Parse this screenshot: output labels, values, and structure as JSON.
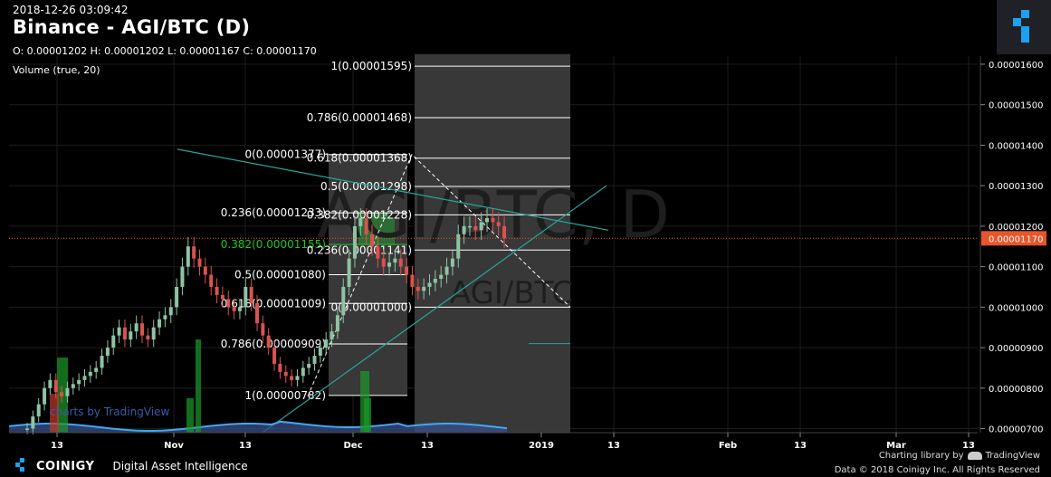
{
  "header": {
    "timestamp": "2018-12-26 03:09:42",
    "title": "Binance - AGI/BTC (D)",
    "ohlc": "O: 0.00001202 H: 0.00001202 L: 0.00001167 C: 0.00001170",
    "volume_label": "Volume (true, 20)"
  },
  "watermark": {
    "big": "AGI/BTC, D",
    "small": "AGI/BTC"
  },
  "chart_data": {
    "type": "candlestick",
    "y_axis_ticks": [
      "0.00001600",
      "0.00001500",
      "0.00001400",
      "0.00001300",
      "0.00001200",
      "0.00001100",
      "0.00001000",
      "0.00000900",
      "0.00000800",
      "0.00000700"
    ],
    "ylim": [
      6.9e-06,
      1.62e-05
    ],
    "current_price_label": "0.00001170",
    "current_price": 1.17e-05,
    "x_axis_ticks": [
      "13",
      "Nov",
      "13",
      "Dec",
      "13",
      "2019",
      "13",
      "Feb",
      "13",
      "Mar",
      "13"
    ],
    "candle_closes": [
      7e-06,
      7.3e-06,
      7.6e-06,
      8e-06,
      8.2e-06,
      7.9e-06,
      7.8e-06,
      8e-06,
      8.1e-06,
      8.2e-06,
      8.3e-06,
      8.4e-06,
      8.5e-06,
      8.8e-06,
      9e-06,
      9.3e-06,
      9.5e-06,
      9.2e-06,
      9.4e-06,
      9.6e-06,
      9.3e-06,
      9.2e-06,
      9.5e-06,
      9.7e-06,
      9.8e-06,
      1e-05,
      1.05e-05,
      1.1e-05,
      1.15e-05,
      1.12e-05,
      1.1e-05,
      1.08e-05,
      1.05e-05,
      1.03e-05,
      1.02e-05,
      1e-05,
      9.9e-06,
      1e-05,
      1.05e-05,
      1.01e-05,
      9.6e-06,
      9.3e-06,
      9e-06,
      8.6e-06,
      8.4e-06,
      8.3e-06,
      8.2e-06,
      8.3e-06,
      8.5e-06,
      8.6e-06,
      8.8e-06,
      9e-06,
      9.2e-06,
      9.4e-06,
      9.8e-06,
      1.05e-05,
      1.12e-05,
      1.2e-05,
      1.22e-05,
      1.18e-05,
      1.15e-05,
      1.12e-05,
      1.1e-05,
      1.11e-05,
      1.12e-05,
      1.1e-05,
      1.08e-05,
      1.05e-05,
      1.04e-05,
      1.05e-05,
      1.06e-05,
      1.07e-05,
      1.08e-05,
      1.1e-05,
      1.12e-05,
      1.18e-05,
      1.2e-05,
      1.2e-05,
      1.19e-05,
      1.21e-05,
      1.22e-05,
      1.21e-05,
      1.2e-05,
      1.17e-05
    ],
    "fib_levels_left": [
      {
        "text": "0(0.00001377)",
        "price": 1.377e-05,
        "color": "#ffffff"
      },
      {
        "text": "0.236(0.00001233)",
        "price": 1.233e-05,
        "color": "#ffffff"
      },
      {
        "text": "0.382(0.00001155)",
        "price": 1.155e-05,
        "color": "#22c522"
      },
      {
        "text": "0.5(0.00001080)",
        "price": 1.08e-05,
        "color": "#ffffff"
      },
      {
        "text": "0.618(0.00001009)",
        "price": 1.009e-05,
        "color": "#ffffff"
      },
      {
        "text": "0.786(0.00000909)",
        "price": 9.09e-06,
        "color": "#ffffff"
      },
      {
        "text": "1(0.00000782)",
        "price": 7.82e-06,
        "color": "#ffffff"
      }
    ],
    "fib_levels_right": [
      {
        "text": "1(0.00001595)",
        "price": 1.595e-05
      },
      {
        "text": "0.786(0.00001468)",
        "price": 1.468e-05
      },
      {
        "text": "0.618(0.00001368)",
        "price": 1.368e-05
      },
      {
        "text": "0.5(0.00001298)",
        "price": 1.298e-05
      },
      {
        "text": "0.382(0.00001228)",
        "price": 1.228e-05
      },
      {
        "text": "0.236(0.00001141)",
        "price": 1.141e-05
      },
      {
        "text": "0(0.00001000)",
        "price": 1e-05
      }
    ],
    "grid": true,
    "colors": {
      "up": "#8ec3a4",
      "down": "#d9534f",
      "trend": "#26a69a",
      "price_line": "#e8552b",
      "volume": "#3fa9f5"
    }
  },
  "tv_logo": "charts by TradingView",
  "footer": {
    "brand": "COINIGY",
    "tagline": "Digital Asset Intelligence",
    "charting": "Charting library by",
    "tradingview": "TradingView",
    "copyright": "Data © 2018 Coinigy Inc. All Rights Reserved"
  }
}
